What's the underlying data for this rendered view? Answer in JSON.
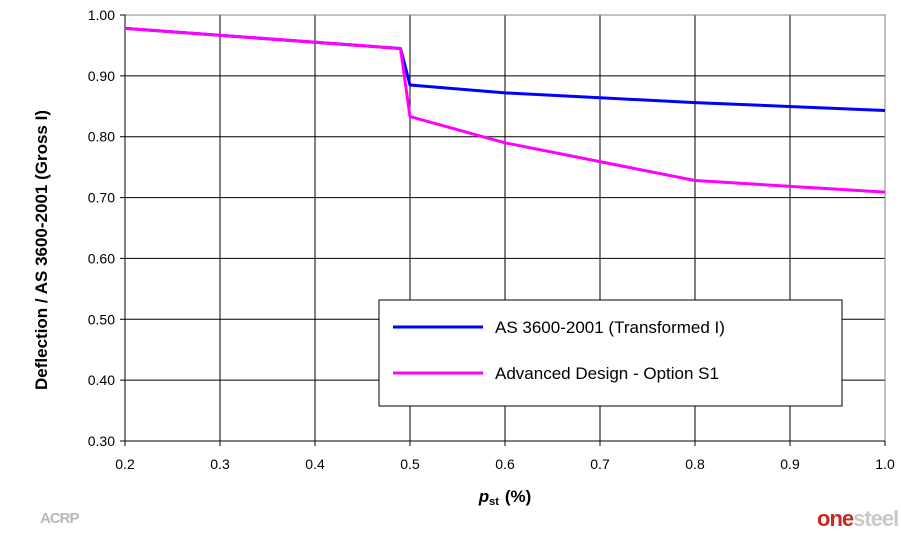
{
  "chart_data": {
    "type": "line",
    "xlabel_main": "p",
    "xlabel_sub": "st",
    "xlabel_unit": "(%)",
    "ylabel": "Deflection / AS 3600-2001 (Gross I)",
    "xlim": [
      0.2,
      1.0
    ],
    "ylim": [
      0.3,
      1.0
    ],
    "x_ticks": [
      0.2,
      0.3,
      0.4,
      0.5,
      0.6,
      0.7,
      0.8,
      0.9,
      1.0
    ],
    "x_tick_labels": [
      "0.2",
      "0.3",
      "0.4",
      "0.5",
      "0.6",
      "0.7",
      "0.8",
      "0.9",
      "1.0"
    ],
    "y_ticks": [
      0.3,
      0.4,
      0.5,
      0.6,
      0.7,
      0.8,
      0.9,
      1.0
    ],
    "y_tick_labels": [
      "0.30",
      "0.40",
      "0.50",
      "0.60",
      "0.70",
      "0.80",
      "0.90",
      "1.00"
    ],
    "grid": true,
    "legend_position": "lower-right",
    "series": [
      {
        "name": "AS 3600-2001 (Transformed I)",
        "color": "#0000ff",
        "points": [
          [
            0.2,
            0.978
          ],
          [
            0.49,
            0.945
          ],
          [
            0.5,
            0.885
          ],
          [
            0.6,
            0.872
          ],
          [
            0.8,
            0.856
          ],
          [
            1.0,
            0.843
          ]
        ]
      },
      {
        "name": "Advanced Design - Option S1",
        "color": "#ff00ff",
        "points": [
          [
            0.2,
            0.978
          ],
          [
            0.49,
            0.945
          ],
          [
            0.5,
            0.833
          ],
          [
            0.6,
            0.79
          ],
          [
            0.8,
            0.728
          ],
          [
            1.0,
            0.709
          ]
        ]
      }
    ]
  },
  "logos": {
    "left": "ACRP",
    "right_part1": "one",
    "right_part2": "steel"
  }
}
